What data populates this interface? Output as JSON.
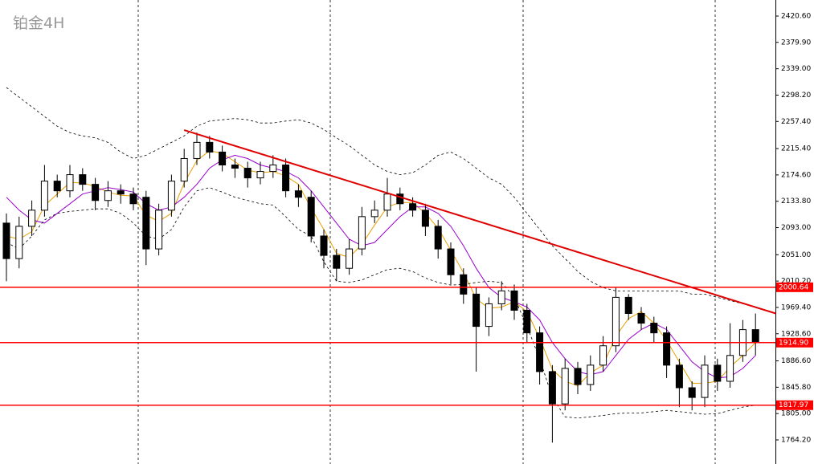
{
  "chart_data": {
    "type": "candlestick",
    "title": "铂金4H",
    "ylim": [
      1726.9,
      2445.5
    ],
    "yticks": [
      {
        "value": 2420.6,
        "label": "2420.60"
      },
      {
        "value": 2379.9,
        "label": "2379.90"
      },
      {
        "value": 2339.0,
        "label": "2339.00"
      },
      {
        "value": 2298.2,
        "label": "2298.20"
      },
      {
        "value": 2257.4,
        "label": "2257.40"
      },
      {
        "value": 2215.4,
        "label": "2215.40"
      },
      {
        "value": 2174.6,
        "label": "2174.60"
      },
      {
        "value": 2133.8,
        "label": "2133.80"
      },
      {
        "value": 2093.0,
        "label": "2093.00"
      },
      {
        "value": 2051.0,
        "label": "2051.00"
      },
      {
        "value": 2010.2,
        "label": "2010.20"
      },
      {
        "value": 1969.4,
        "label": "1969.40"
      },
      {
        "value": 1928.6,
        "label": "1928.60"
      },
      {
        "value": 1886.6,
        "label": "1886.60"
      },
      {
        "value": 1845.8,
        "label": "1845.80"
      },
      {
        "value": 1805.0,
        "label": "1805.00"
      },
      {
        "value": 1764.2,
        "label": "1764.20"
      }
    ],
    "open": [
      2100,
      2045,
      2095,
      2120,
      2165,
      2150,
      2175,
      2160,
      2135,
      2150,
      2145,
      2140,
      2060,
      2120,
      2165,
      2200,
      2225,
      2210,
      2190,
      2185,
      2170,
      2180,
      2190,
      2150,
      2140,
      2080,
      2050,
      2030,
      2060,
      2110,
      2120,
      2145,
      2130,
      2120,
      2095,
      2060,
      2020,
      1990,
      1940,
      1975,
      1995,
      1965,
      1930,
      1870,
      1820,
      1875,
      1850,
      1880,
      1910,
      1985,
      1960,
      1945,
      1930,
      1880,
      1845,
      1830,
      1880,
      1855,
      1895,
      1935
    ],
    "high": [
      2115,
      2110,
      2135,
      2190,
      2175,
      2190,
      2185,
      2170,
      2165,
      2160,
      2155,
      2150,
      2130,
      2175,
      2215,
      2240,
      2235,
      2220,
      2200,
      2195,
      2195,
      2205,
      2200,
      2160,
      2150,
      2090,
      2060,
      2075,
      2125,
      2135,
      2170,
      2155,
      2140,
      2130,
      2105,
      2070,
      2030,
      2000,
      1985,
      2010,
      2005,
      1975,
      1940,
      1880,
      1890,
      1885,
      1895,
      1925,
      2000,
      1990,
      1970,
      1955,
      1940,
      1890,
      1855,
      1895,
      1890,
      1945,
      1950,
      1960
    ],
    "low": [
      2010,
      2030,
      2080,
      2110,
      2140,
      2140,
      2150,
      2120,
      2125,
      2130,
      2120,
      2035,
      2050,
      2110,
      2155,
      2190,
      2200,
      2180,
      2170,
      2155,
      2160,
      2170,
      2140,
      2125,
      2070,
      2030,
      2010,
      2020,
      2050,
      2100,
      2110,
      2120,
      2110,
      2080,
      2045,
      2005,
      1975,
      1870,
      1925,
      1965,
      1950,
      1915,
      1850,
      1760,
      1810,
      1835,
      1840,
      1870,
      1900,
      1950,
      1935,
      1915,
      1860,
      1815,
      1810,
      1815,
      1840,
      1845,
      1885,
      1895
    ],
    "close": [
      2045,
      2095,
      2120,
      2165,
      2150,
      2175,
      2160,
      2135,
      2150,
      2145,
      2130,
      2060,
      2120,
      2165,
      2200,
      2225,
      2210,
      2190,
      2185,
      2170,
      2180,
      2190,
      2150,
      2140,
      2080,
      2050,
      2030,
      2060,
      2110,
      2120,
      2145,
      2130,
      2120,
      2095,
      2060,
      2020,
      1990,
      1940,
      1975,
      1995,
      1965,
      1930,
      1870,
      1820,
      1875,
      1850,
      1880,
      1910,
      1985,
      1960,
      1945,
      1930,
      1880,
      1845,
      1830,
      1880,
      1855,
      1895,
      1935,
      1915
    ],
    "lines": [
      {
        "color": "#e8a000",
        "dash": false,
        "values": [
          2080,
          2075,
          2087,
          2127,
          2145,
          2163,
          2162,
          2157,
          2148,
          2143,
          2142,
          2112,
          2103,
          2115,
          2162,
          2197,
          2212,
          2208,
          2195,
          2182,
          2178,
          2180,
          2173,
          2160,
          2123,
          2090,
          2053,
          2047,
          2067,
          2097,
          2125,
          2132,
          2132,
          2115,
          2092,
          2058,
          2023,
          1983,
          1968,
          1970,
          1978,
          1963,
          1922,
          1873,
          1855,
          1848,
          1868,
          1880,
          1925,
          1952,
          1963,
          1945,
          1918,
          1885,
          1852,
          1852,
          1855,
          1877,
          1895,
          1915
        ]
      },
      {
        "color": "#9900cc",
        "dash": false,
        "values": [
          2140,
          2120,
          2105,
          2100,
          2115,
          2130,
          2145,
          2150,
          2155,
          2152,
          2148,
          2130,
          2120,
          2125,
          2140,
          2160,
          2185,
          2198,
          2205,
          2200,
          2190,
          2185,
          2180,
          2170,
          2150,
          2125,
          2100,
          2075,
          2065,
          2070,
          2090,
          2110,
          2125,
          2125,
          2115,
          2095,
          2065,
          2030,
          2000,
          1985,
          1978,
          1970,
          1950,
          1915,
          1890,
          1870,
          1865,
          1870,
          1895,
          1920,
          1935,
          1945,
          1935,
          1910,
          1885,
          1870,
          1860,
          1862,
          1875,
          1895
        ]
      },
      {
        "color": "#000000",
        "dash": true,
        "values": [
          2310,
          2295,
          2280,
          2265,
          2250,
          2240,
          2235,
          2232,
          2225,
          2210,
          2200,
          2205,
          2215,
          2225,
          2235,
          2250,
          2258,
          2260,
          2262,
          2260,
          2255,
          2255,
          2258,
          2260,
          2255,
          2245,
          2232,
          2220,
          2205,
          2190,
          2180,
          2175,
          2178,
          2190,
          2205,
          2210,
          2200,
          2185,
          2170,
          2160,
          2140,
          2115,
          2090,
          2065,
          2045,
          2025,
          2010,
          2000,
          1995,
          1995,
          1995,
          1995,
          1995,
          1995,
          1990,
          1990,
          1985,
          1980,
          1975,
          1970
        ]
      },
      {
        "color": "#000000",
        "dash": true,
        "values": [
          2070,
          2060,
          2080,
          2105,
          2115,
          2118,
          2120,
          2122,
          2122,
          2115,
          2100,
          2080,
          2075,
          2090,
          2125,
          2150,
          2155,
          2148,
          2140,
          2135,
          2130,
          2128,
          2110,
          2090,
          2080,
          2040,
          2010,
          2008,
          2012,
          2020,
          2028,
          2030,
          2025,
          2015,
          2008,
          2004,
          2005,
          2008,
          2010,
          2008,
          1985,
          1940,
          1890,
          1830,
          1800,
          1798,
          1800,
          1802,
          1805,
          1806,
          1806,
          1808,
          1810,
          1808,
          1806,
          1804,
          1805,
          1810,
          1815,
          1818
        ]
      }
    ],
    "levels": [
      2000.64,
      {
        "value": 1914.9,
        "label": "1914.90"
      },
      1817.97
    ],
    "level_color": "#ff0000",
    "trend_line": {
      "x": [
        14,
        60.6
      ],
      "values": [
        2244,
        1960
      ],
      "color": "#e00000"
    }
  }
}
